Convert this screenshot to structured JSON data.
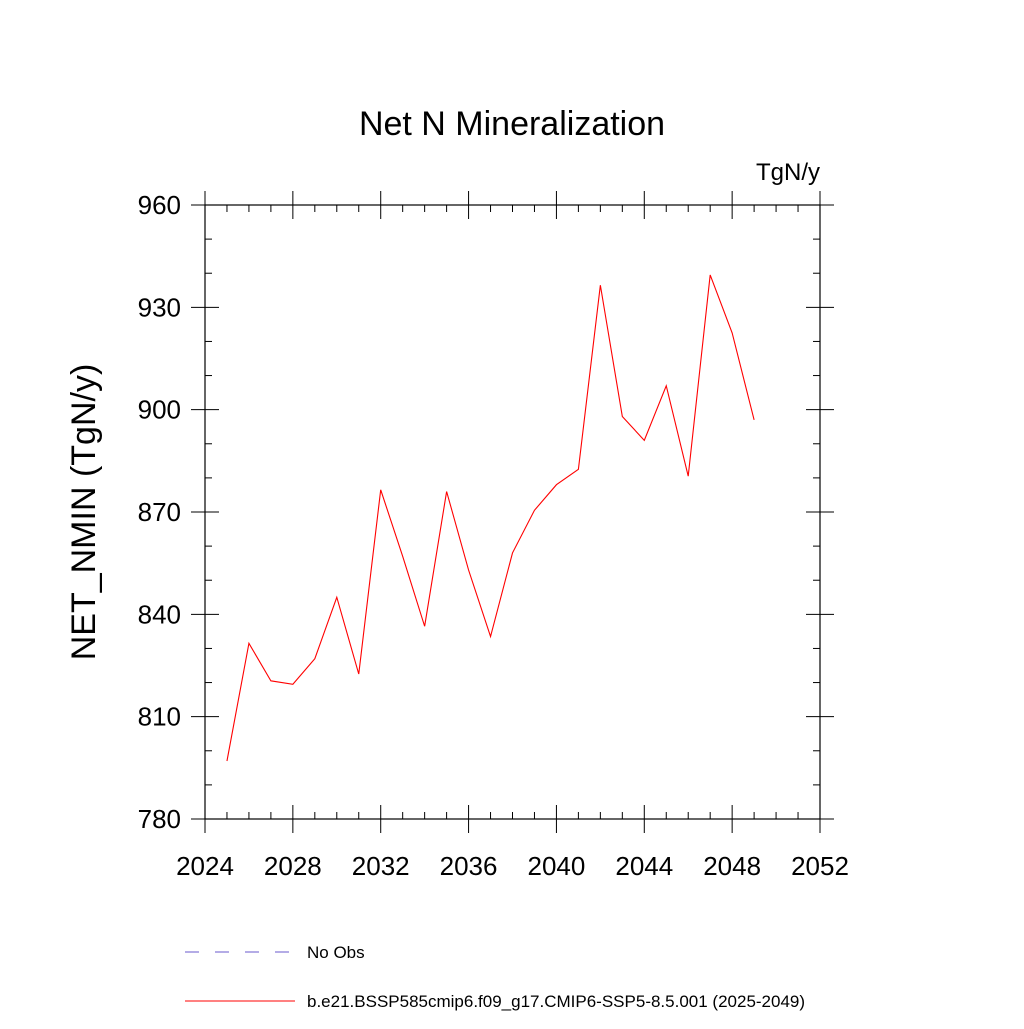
{
  "chart_data": {
    "type": "line",
    "title": "Net N Mineralization",
    "units_label": "TgN/y",
    "ylabel": "NET_NMIN  (TgN/y)",
    "xlabel": "",
    "xlim": [
      2024,
      2052
    ],
    "ylim": [
      780,
      960
    ],
    "x_ticks": [
      2024,
      2028,
      2032,
      2036,
      2040,
      2044,
      2048,
      2052
    ],
    "y_ticks": [
      780,
      810,
      840,
      870,
      900,
      930,
      960
    ],
    "x_minor_step": 1,
    "y_minor_step": 10,
    "grid": false,
    "series": [
      {
        "name": "b.e21.BSSP585cmip6.f09_g17.CMIP6-SSP5-8.5.001 (2025-2049)",
        "color": "#ff0000",
        "style": "solid",
        "x": [
          2025,
          2026,
          2027,
          2028,
          2029,
          2030,
          2031,
          2032,
          2033,
          2034,
          2035,
          2036,
          2037,
          2038,
          2039,
          2040,
          2041,
          2042,
          2043,
          2044,
          2045,
          2046,
          2047,
          2048,
          2049
        ],
        "y": [
          797,
          831.5,
          820.5,
          819.5,
          827,
          845,
          822.5,
          876.5,
          857,
          836.5,
          876,
          853,
          833.5,
          858,
          870.5,
          878,
          882.5,
          936.5,
          898,
          891,
          907,
          880.5,
          939.5,
          922.5,
          897
        ]
      }
    ],
    "legend": {
      "placement": "bottom",
      "entries": [
        {
          "label": "No Obs",
          "color": "#6a5acd",
          "style": "dashed"
        },
        {
          "label": "b.e21.BSSP585cmip6.f09_g17.CMIP6-SSP5-8.5.001 (2025-2049)",
          "color": "#ff0000",
          "style": "solid"
        }
      ]
    }
  }
}
